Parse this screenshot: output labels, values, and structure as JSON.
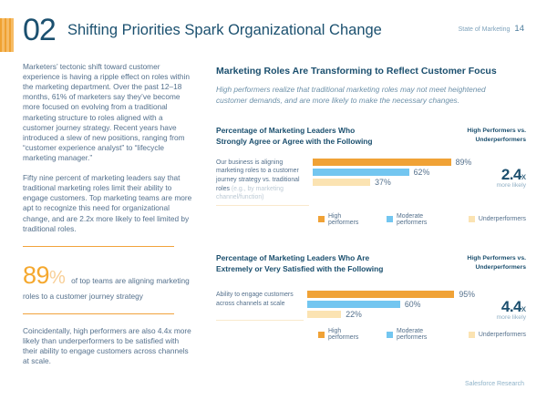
{
  "page": {
    "chapter_number": "02",
    "chapter_title": "Shifting Priorities Spark Organizational Change",
    "report_name": "State of Marketing",
    "page_number": "14",
    "footer": "Salesforce Research"
  },
  "left_column": {
    "para1": "Marketers’ tectonic shift toward customer experience is having a ripple effect on roles within the marketing department. Over the past 12–18 months, 61% of marketers say they’ve become more focused on evolving from a traditional marketing structure to roles aligned with a customer journey strategy. Recent years have introduced a slew of new positions, ranging from “customer experience analyst” to “lifecycle marketing manager.”",
    "para2": "Fifty nine percent of marketing leaders say that traditional marketing roles limit their ability to engage customers. Top marketing teams are more apt to recognize this need for organizational change, and are 2.2x more likely to feel limited by traditional roles.",
    "callout": {
      "value": "89",
      "percent_sign": "%",
      "text": "of top teams are aligning marketing roles to a customer journey strategy"
    },
    "para3": "Coincidentally, high performers are also 4.4x more likely than underperformers to be satisfied with their ability to engage customers across channels at scale."
  },
  "right_column": {
    "section_title": "Marketing Roles Are Transforming to Reflect Customer Focus",
    "section_subtitle": "High performers realize that traditional marketing roles may not meet heightened customer demands, and are more likely to make the necessary changes."
  },
  "colors": {
    "bar_orange": "#F0A236",
    "bar_blue": "#73C6F0",
    "bar_pale": "#FBE3B2",
    "heading_navy": "#1B4F6E",
    "accent_orange": "#F2A33C"
  },
  "chart_data": [
    {
      "type": "bar",
      "title": "Percentage of Marketing Leaders Who\nStrongly Agree or Agree with the Following",
      "comparison_label": "High Performers vs.\nUnderperformers",
      "row_label": "Our business is aligning marketing roles to a customer journey strategy vs. traditional roles ",
      "row_label_note": "(e.g., by marketing channel/function)",
      "categories": [
        "High performers",
        "Moderate performers",
        "Underperformers"
      ],
      "values": [
        89,
        62,
        37
      ],
      "unit": "%",
      "xlim": [
        0,
        100
      ],
      "multiplier": "2.4",
      "multiplier_suffix": "x",
      "multiplier_note": "more likely",
      "legend": [
        "High performers",
        "Moderate performers",
        "Underperformers"
      ]
    },
    {
      "type": "bar",
      "title": "Percentage of Marketing Leaders Who Are\nExtremely or Very Satisfied with the Following",
      "comparison_label": "High Performers vs.\nUnderperformers",
      "row_label": "Ability to engage customers across channels at scale",
      "row_label_note": "",
      "categories": [
        "High performers",
        "Moderate performers",
        "Underperformers"
      ],
      "values": [
        95,
        60,
        22
      ],
      "unit": "%",
      "xlim": [
        0,
        100
      ],
      "multiplier": "4.4",
      "multiplier_suffix": "x",
      "multiplier_note": "more likely",
      "legend": [
        "High performers",
        "Moderate performers",
        "Underperformers"
      ]
    }
  ]
}
